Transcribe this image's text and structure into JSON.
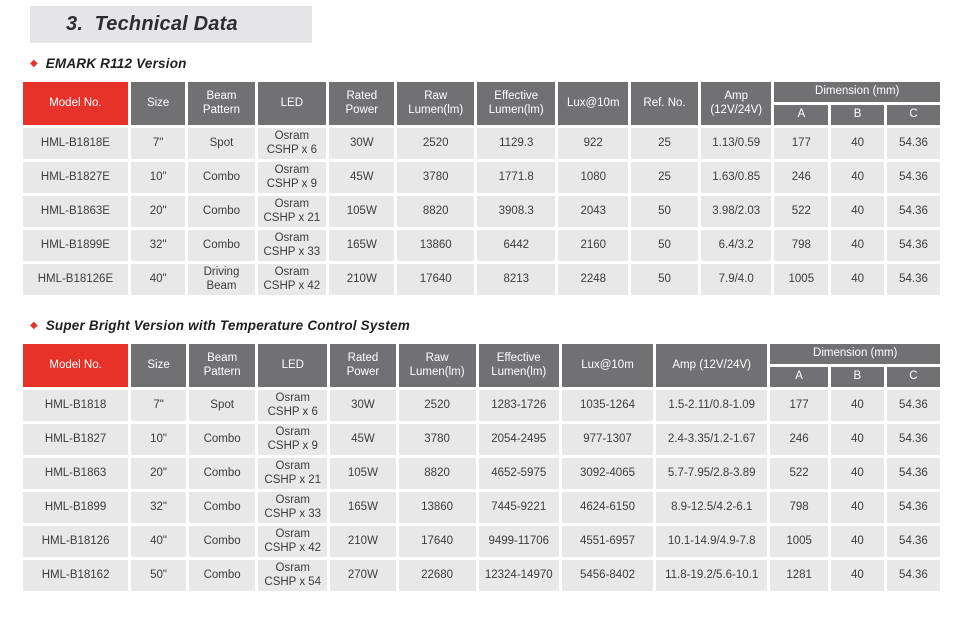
{
  "title": "3.  Technical Data",
  "bullet": "◆",
  "colors": {
    "accent_red": "#e73229",
    "header_gray": "#717174",
    "row_gray": "#e8e8e8",
    "title_box_gray": "#e5e5e7"
  },
  "sections": [
    {
      "heading": "EMARK R112 Version",
      "table": {
        "headers": {
          "model_no": "Model No.",
          "size": "Size",
          "beam_pattern": "Beam Pattern",
          "led": "LED",
          "rated_power": "Rated Power",
          "raw_lumen": "Raw Lumen(lm)",
          "effective_lumen": "Effective Lumen(lm)",
          "lux": "Lux@10m",
          "ref_no": "Ref. No.",
          "amp": "Amp (12V/24V)",
          "dimension": "Dimension (mm)",
          "dim_a": "A",
          "dim_b": "B",
          "dim_c": "C"
        },
        "rows": [
          [
            "HML-B1818E",
            "7\"",
            "Spot",
            "Osram CSHP x 6",
            "30W",
            "2520",
            "1129.3",
            "922",
            "25",
            "1.13/0.59",
            "177",
            "40",
            "54.36"
          ],
          [
            "HML-B1827E",
            "10\"",
            "Combo",
            "Osram CSHP x 9",
            "45W",
            "3780",
            "1771.8",
            "1080",
            "25",
            "1.63/0.85",
            "246",
            "40",
            "54.36"
          ],
          [
            "HML-B1863E",
            "20\"",
            "Combo",
            "Osram CSHP x 21",
            "105W",
            "8820",
            "3908.3",
            "2043",
            "50",
            "3.98/2.03",
            "522",
            "40",
            "54.36"
          ],
          [
            "HML-B1899E",
            "32\"",
            "Combo",
            "Osram CSHP x 33",
            "165W",
            "13860",
            "6442",
            "2160",
            "50",
            "6.4/3.2",
            "798",
            "40",
            "54.36"
          ],
          [
            "HML-B18126E",
            "40\"",
            "Driving Beam",
            "Osram CSHP x 42",
            "210W",
            "17640",
            "8213",
            "2248",
            "50",
            "7.9/4.0",
            "1005",
            "40",
            "54.36"
          ]
        ]
      }
    },
    {
      "heading": "Super Bright Version with Temperature Control System",
      "table": {
        "headers": {
          "model_no": "Model No.",
          "size": "Size",
          "beam_pattern": "Beam Pattern",
          "led": "LED",
          "rated_power": "Rated Power",
          "raw_lumen": "Raw Lumen(lm)",
          "effective_lumen": "Effective Lumen(lm)",
          "lux": "Lux@10m",
          "amp": "Amp (12V/24V)",
          "dimension": "Dimension (mm)",
          "dim_a": "A",
          "dim_b": "B",
          "dim_c": "C"
        },
        "rows": [
          [
            "HML-B1818",
            "7\"",
            "Spot",
            "Osram CSHP x 6",
            "30W",
            "2520",
            "1283-1726",
            "1035-1264",
            "1.5-2.11/0.8-1.09",
            "177",
            "40",
            "54.36"
          ],
          [
            "HML-B1827",
            "10\"",
            "Combo",
            "Osram CSHP x 9",
            "45W",
            "3780",
            "2054-2495",
            "977-1307",
            "2.4-3.35/1.2-1.67",
            "246",
            "40",
            "54.36"
          ],
          [
            "HML-B1863",
            "20\"",
            "Combo",
            "Osram CSHP x 21",
            "105W",
            "8820",
            "4652-5975",
            "3092-4065",
            "5.7-7.95/2.8-3.89",
            "522",
            "40",
            "54.36"
          ],
          [
            "HML-B1899",
            "32\"",
            "Combo",
            "Osram CSHP x 33",
            "165W",
            "13860",
            "7445-9221",
            "4624-6150",
            "8.9-12.5/4.2-6.1",
            "798",
            "40",
            "54.36"
          ],
          [
            "HML-B18126",
            "40\"",
            "Combo",
            "Osram CSHP x 42",
            "210W",
            "17640",
            "9499-11706",
            "4551-6957",
            "10.1-14.9/4.9-7.8",
            "1005",
            "40",
            "54.36"
          ],
          [
            "HML-B18162",
            "50\"",
            "Combo",
            "Osram CSHP x 54",
            "270W",
            "22680",
            "12324-14970",
            "5456-8402",
            "11.8-19.2/5.6-10.1",
            "1281",
            "40",
            "54.36"
          ]
        ]
      }
    }
  ]
}
